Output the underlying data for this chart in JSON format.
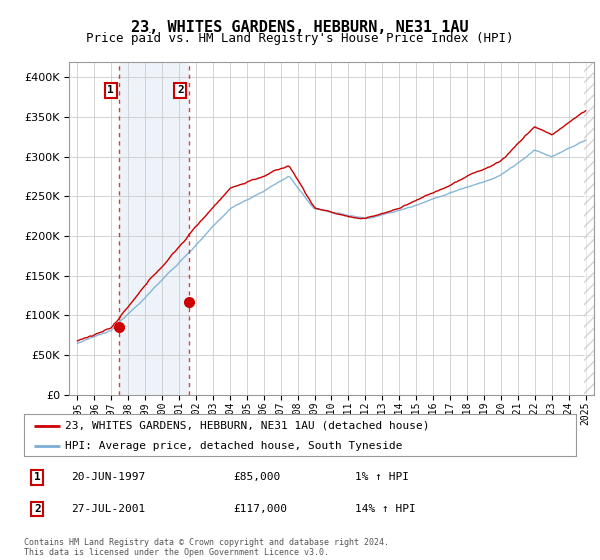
{
  "title": "23, WHITES GARDENS, HEBBURN, NE31 1AU",
  "subtitle": "Price paid vs. HM Land Registry's House Price Index (HPI)",
  "legend_line1": "23, WHITES GARDENS, HEBBURN, NE31 1AU (detached house)",
  "legend_line2": "HPI: Average price, detached house, South Tyneside",
  "footnote": "Contains HM Land Registry data © Crown copyright and database right 2024.\nThis data is licensed under the Open Government Licence v3.0.",
  "sale1_date": "20-JUN-1997",
  "sale1_price": 85000,
  "sale1_hpi": "1% ↑ HPI",
  "sale2_date": "27-JUL-2001",
  "sale2_price": 117000,
  "sale2_hpi": "14% ↑ HPI",
  "red_line_color": "#cc0000",
  "blue_line_color": "#7bafd4",
  "bg_color": "#dce9f5",
  "plot_bg": "#ffffff",
  "grid_color": "#cccccc",
  "sale1_x": 1997.47,
  "sale2_x": 2001.57,
  "ylim_min": 0,
  "ylim_max": 420000,
  "xlim_min": 1994.5,
  "xlim_max": 2025.5
}
